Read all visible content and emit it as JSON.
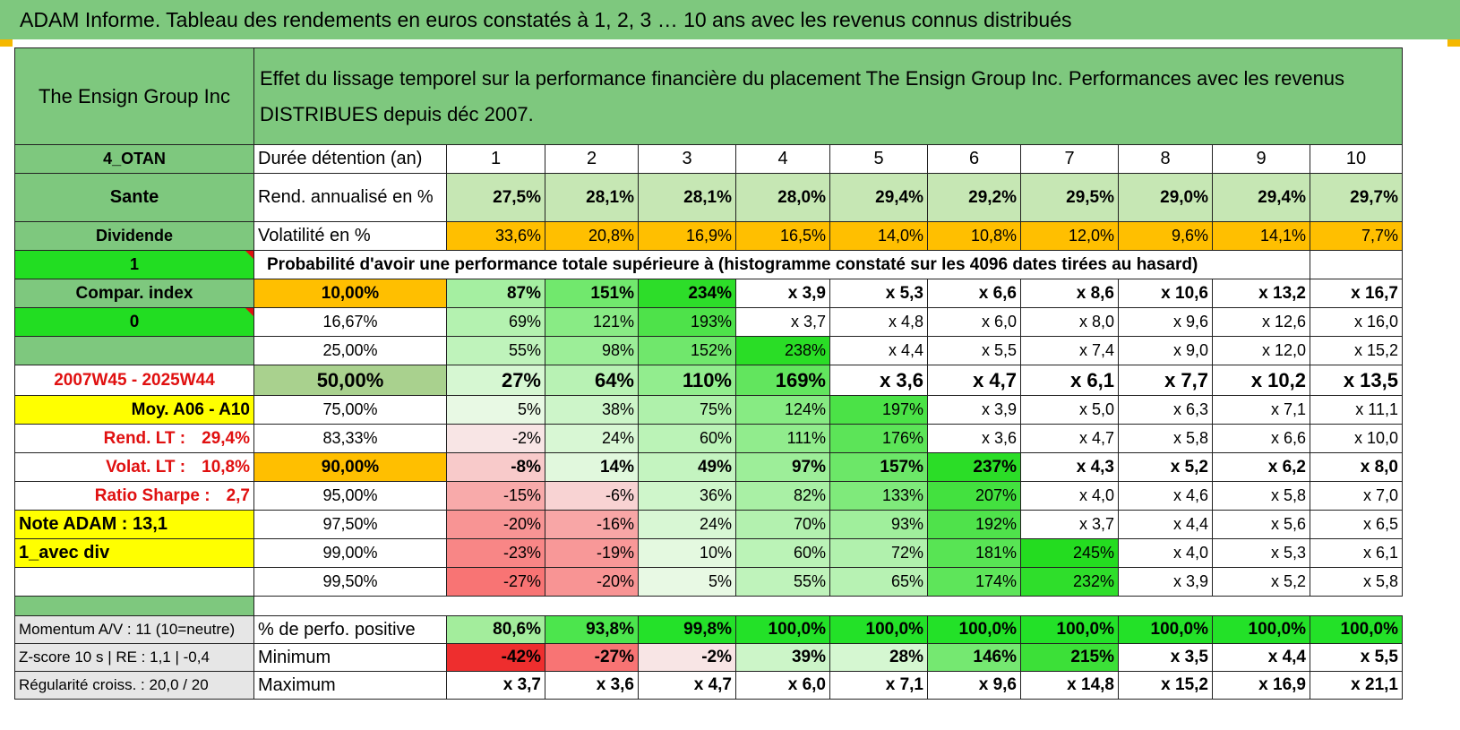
{
  "title": "ADAM Informe. Tableau des rendements en euros constatés à 1, 2, 3 … 10 ans avec les revenus connus distribués",
  "fund_name": "The Ensign Group Inc",
  "header_text": "Effet du lissage temporel sur la performance financière du placement The Ensign Group Inc. Performances avec les revenus DISTRIBUES depuis déc 2007.",
  "left_labels": {
    "l1": "4_OTAN",
    "l2": "Sante",
    "l3": "Dividende",
    "l4": "1",
    "l5": "Compar. index",
    "l6": "0",
    "l7": "",
    "l8": "2007W45 - 2025W44",
    "l9": "Moy. A06 - A10",
    "l10_label": "Rend. LT :",
    "l10_value": "29,4%",
    "l11_label": "Volat. LT :",
    "l11_value": "10,8%",
    "l12_label": "Ratio Sharpe :",
    "l12_value": "2,7",
    "l13": "Note ADAM : 13,1",
    "l14": "1_avec div",
    "l15": ""
  },
  "duration_label": "Durée détention (an)",
  "years": [
    "1",
    "2",
    "3",
    "4",
    "5",
    "6",
    "7",
    "8",
    "9",
    "10"
  ],
  "rend_label": "Rend. annualisé en %",
  "rend": [
    "27,5%",
    "28,1%",
    "28,1%",
    "28,0%",
    "29,4%",
    "29,2%",
    "29,5%",
    "29,0%",
    "29,4%",
    "29,7%"
  ],
  "vol_label": "Volatilité en %",
  "vol": [
    "33,6%",
    "20,8%",
    "16,9%",
    "16,5%",
    "14,0%",
    "10,8%",
    "12,0%",
    "9,6%",
    "14,1%",
    "7,7%"
  ],
  "prob_label": "Probabilité d'avoir une performance totale supérieure à (histogramme constaté sur les 4096 dates tirées au hasard)",
  "prob_rows": [
    {
      "p": "10,00%",
      "v": [
        "87%",
        "151%",
        "234%",
        "x 3,9",
        "x 5,3",
        "x 6,6",
        "x 8,6",
        "x 10,6",
        "x 13,2",
        "x 16,7"
      ]
    },
    {
      "p": "16,67%",
      "v": [
        "69%",
        "121%",
        "193%",
        "x 3,7",
        "x 4,8",
        "x 6,0",
        "x 8,0",
        "x 9,6",
        "x 12,6",
        "x 16,0"
      ]
    },
    {
      "p": "25,00%",
      "v": [
        "55%",
        "98%",
        "152%",
        "238%",
        "x 4,4",
        "x 5,5",
        "x 7,4",
        "x 9,0",
        "x 12,0",
        "x 15,2"
      ]
    },
    {
      "p": "50,00%",
      "v": [
        "27%",
        "64%",
        "110%",
        "169%",
        "x 3,6",
        "x 4,7",
        "x 6,1",
        "x 7,7",
        "x 10,2",
        "x 13,5"
      ]
    },
    {
      "p": "75,00%",
      "v": [
        "5%",
        "38%",
        "75%",
        "124%",
        "197%",
        "x 3,9",
        "x 5,0",
        "x 6,3",
        "x 7,1",
        "x 11,1"
      ]
    },
    {
      "p": "83,33%",
      "v": [
        "-2%",
        "24%",
        "60%",
        "111%",
        "176%",
        "x 3,6",
        "x 4,7",
        "x 5,8",
        "x 6,6",
        "x 10,0"
      ]
    },
    {
      "p": "90,00%",
      "v": [
        "-8%",
        "14%",
        "49%",
        "97%",
        "157%",
        "237%",
        "x 4,3",
        "x 5,2",
        "x 6,2",
        "x 8,0"
      ]
    },
    {
      "p": "95,00%",
      "v": [
        "-15%",
        "-6%",
        "36%",
        "82%",
        "133%",
        "207%",
        "x 4,0",
        "x 4,6",
        "x 5,8",
        "x 7,0"
      ]
    },
    {
      "p": "97,50%",
      "v": [
        "-20%",
        "-16%",
        "24%",
        "70%",
        "93%",
        "192%",
        "x 3,7",
        "x 4,4",
        "x 5,6",
        "x 6,5"
      ]
    },
    {
      "p": "99,00%",
      "v": [
        "-23%",
        "-19%",
        "10%",
        "60%",
        "72%",
        "181%",
        "245%",
        "x 4,0",
        "x 5,3",
        "x 6,1"
      ]
    },
    {
      "p": "99,50%",
      "v": [
        "-27%",
        "-20%",
        "5%",
        "55%",
        "65%",
        "174%",
        "232%",
        "x 3,9",
        "x 5,2",
        "x 5,8"
      ]
    }
  ],
  "bottom": [
    {
      "left": "Momentum A/V : 11 (10=neutre)",
      "label": "% de perfo. positive",
      "v": [
        "80,6%",
        "93,8%",
        "99,8%",
        "100,0%",
        "100,0%",
        "100,0%",
        "100,0%",
        "100,0%",
        "100,0%",
        "100,0%"
      ]
    },
    {
      "left": "Z-score 10 s | RE : 1,1 | -0,4",
      "label": "Minimum",
      "v": [
        "-42%",
        "-27%",
        "-2%",
        "39%",
        "28%",
        "146%",
        "215%",
        "x 3,5",
        "x 4,4",
        "x 5,5"
      ]
    },
    {
      "left": "Régularité croiss. : 20,0 / 20",
      "label": "Maximum",
      "v": [
        "x 3,7",
        "x 3,6",
        "x 4,7",
        "x 6,0",
        "x 7,1",
        "x 9,6",
        "x 14,8",
        "x 15,2",
        "x 16,9",
        "x 21,1"
      ]
    }
  ],
  "colors": {
    "header_green": "#7ec87e",
    "bright_green": "#22dd22",
    "orange": "#ffbf00",
    "yellow": "#ffff00",
    "red_text": "#e01010"
  }
}
